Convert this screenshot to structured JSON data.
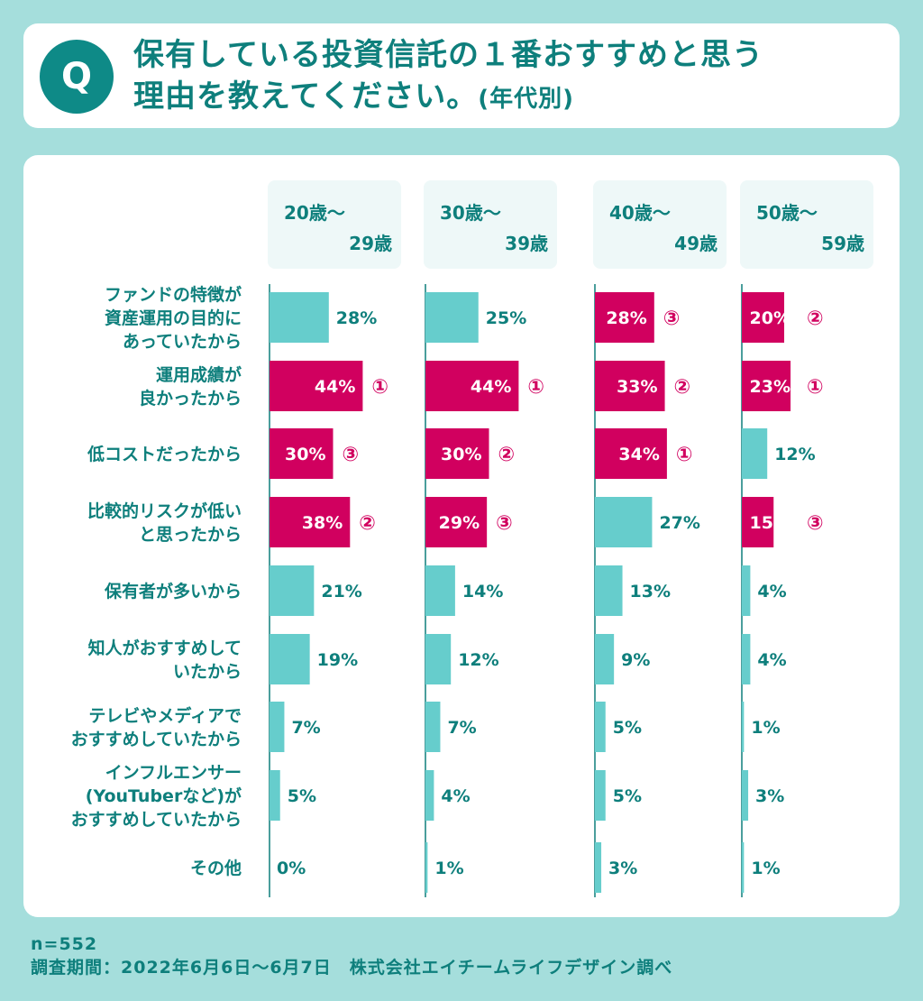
{
  "question": {
    "badge": "Q",
    "line1": "保有している投資信託の１番おすすめと思う",
    "line2": "理由を教えてください。",
    "suffix": "(年代別)"
  },
  "chart_data": {
    "type": "bar",
    "orientation": "horizontal",
    "categories": [
      "ファンドの特徴が\n資産運用の目的に\nあっていたから",
      "運用成績が\n良かったから",
      "低コストだったから",
      "比較的リスクが低い\nと思ったから",
      "保有者が多いから",
      "知人がおすすめして\nいたから",
      "テレビやメディアで\nおすすめしていたから",
      "インフルエンサー\n(YouTuberなど)が\nおすすめしていたから",
      "その他"
    ],
    "series": [
      {
        "name": "20歳～\n29歳",
        "values": [
          28,
          44,
          30,
          38,
          21,
          19,
          7,
          5,
          0
        ],
        "ranks": [
          null,
          "①",
          "③",
          "②",
          null,
          null,
          null,
          null,
          null
        ]
      },
      {
        "name": "30歳～\n39歳",
        "values": [
          25,
          44,
          30,
          29,
          14,
          12,
          7,
          4,
          1
        ],
        "ranks": [
          null,
          "①",
          "②",
          "③",
          null,
          null,
          null,
          null,
          null
        ]
      },
      {
        "name": "40歳～\n49歳",
        "values": [
          28,
          33,
          34,
          27,
          13,
          9,
          5,
          5,
          3
        ],
        "ranks": [
          "③",
          "②",
          "①",
          null,
          null,
          null,
          null,
          null,
          null
        ]
      },
      {
        "name": "50歳～\n59歳",
        "values": [
          20,
          23,
          12,
          15,
          4,
          4,
          1,
          3,
          1
        ],
        "ranks": [
          "②",
          "①",
          null,
          "③",
          null,
          null,
          null,
          null,
          null
        ]
      }
    ],
    "value_suffix": "%",
    "colors": {
      "normal": "#66cdcc",
      "top3": "#d1005f",
      "label": "#0e7f7c",
      "header_bg": "#eef8f8",
      "axis": "#0e7f7c"
    }
  },
  "footer": {
    "sample": "n=552",
    "period": "調査期間：2022年6月6日～6月7日　株式会社エイチームライフデザイン調べ"
  }
}
